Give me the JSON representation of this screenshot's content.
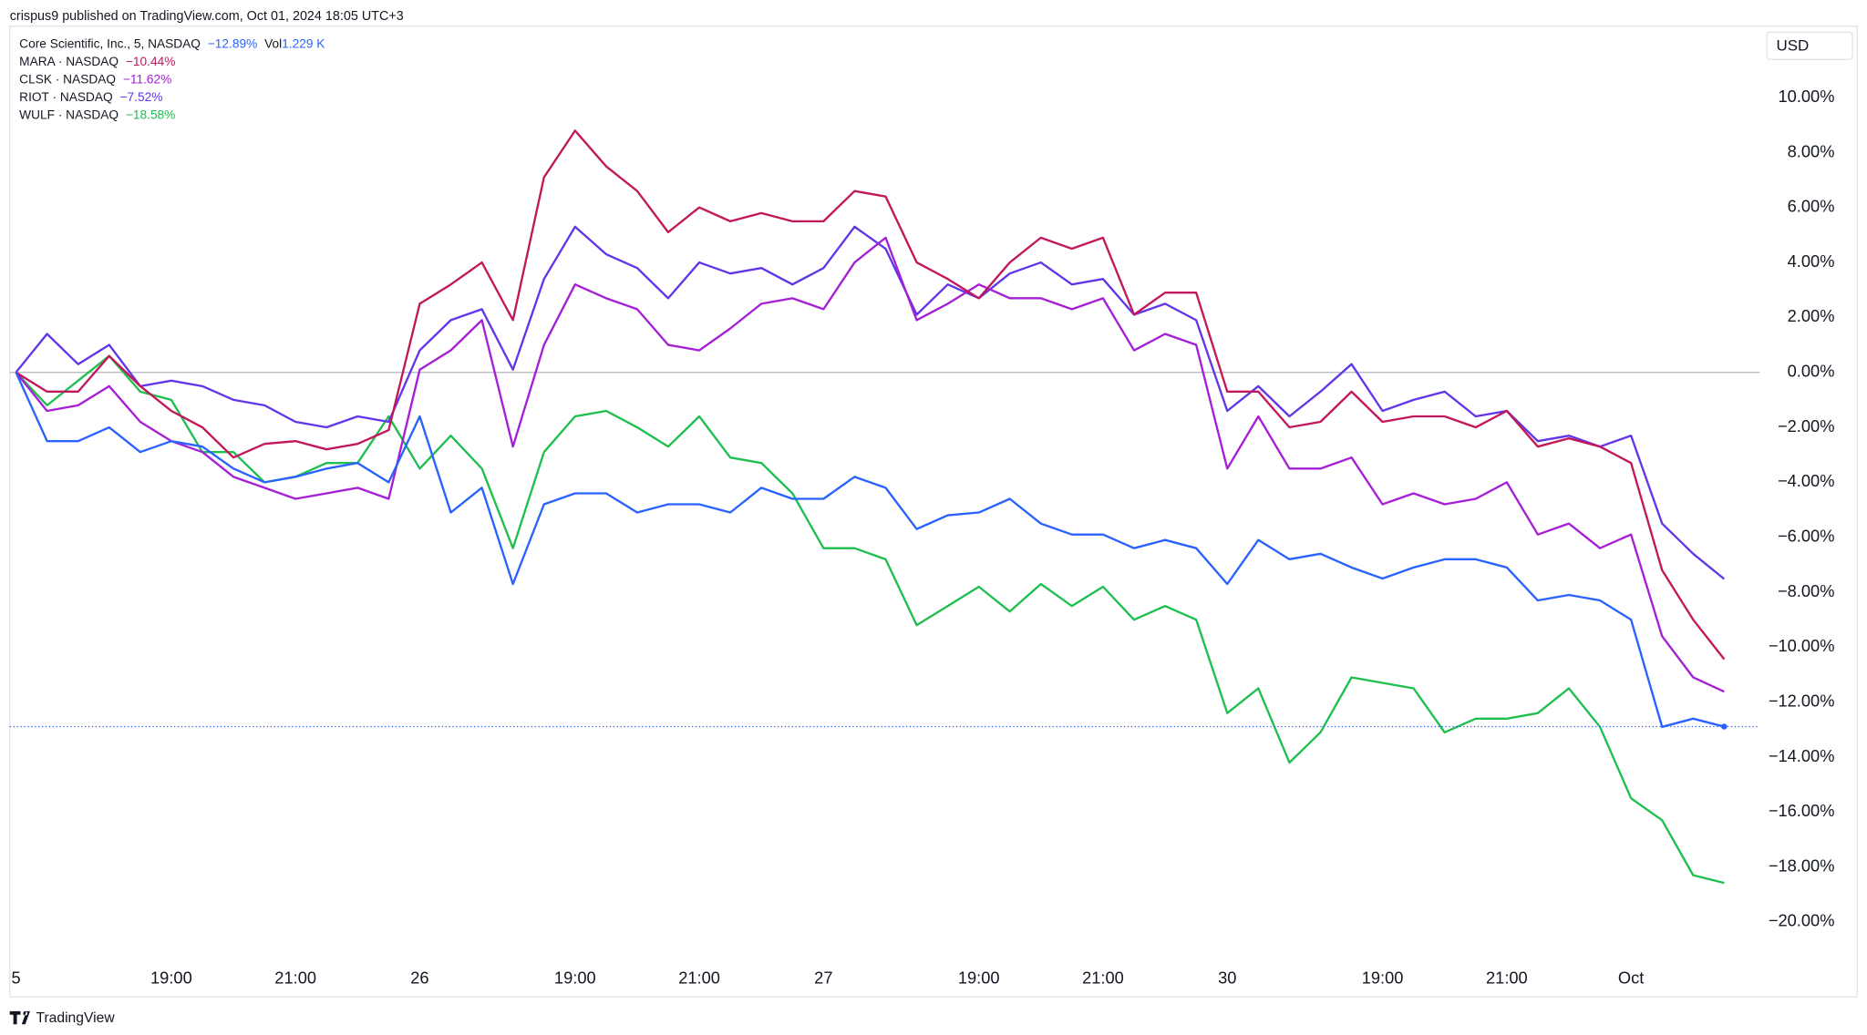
{
  "chart_data": {
    "type": "line",
    "header": "crispus9 published on TradingView.com, Oct 01, 2024 18:05 UTC+3",
    "currency": "USD",
    "brand": "TradingView",
    "volume_label": "Vol",
    "volume": "1.229 K",
    "x": [
      0,
      0.5,
      1,
      1.5,
      2,
      2.5,
      3,
      3.5,
      4,
      4.5,
      5,
      5.5,
      6,
      6.5,
      7,
      7.5,
      8,
      8.5,
      9,
      9.5,
      10,
      10.5,
      11,
      11.5,
      12,
      12.5,
      13,
      13.5,
      14,
      14.5,
      15,
      15.5,
      16,
      16.5,
      17,
      17.5,
      18,
      18.5,
      19,
      19.5,
      20,
      20.5,
      21,
      21.5,
      22,
      22.5,
      23,
      23.5,
      24,
      24.5,
      25,
      25.5,
      26,
      26.5,
      27,
      27.5
    ],
    "xlim": [
      -0.1,
      28.07
    ],
    "xticks": [
      {
        "value": 0,
        "label": "5"
      },
      {
        "value": 2.5,
        "label": "19:00"
      },
      {
        "value": 4.5,
        "label": "21:00"
      },
      {
        "value": 6.5,
        "label": "26"
      },
      {
        "value": 9,
        "label": "19:00"
      },
      {
        "value": 11,
        "label": "21:00"
      },
      {
        "value": 13,
        "label": "27"
      },
      {
        "value": 15.5,
        "label": "19:00"
      },
      {
        "value": 17.5,
        "label": "21:00"
      },
      {
        "value": 19.5,
        "label": "30"
      },
      {
        "value": 22,
        "label": "19:00"
      },
      {
        "value": 24,
        "label": "21:00"
      },
      {
        "value": 26,
        "label": "Oct"
      }
    ],
    "ylim": [
      -21.3,
      12.6
    ],
    "yticks": [
      {
        "value": 10,
        "label": "10.00%"
      },
      {
        "value": 8,
        "label": "8.00%"
      },
      {
        "value": 6,
        "label": "6.00%"
      },
      {
        "value": 4,
        "label": "4.00%"
      },
      {
        "value": 2,
        "label": "2.00%"
      },
      {
        "value": 0,
        "label": "0.00%"
      },
      {
        "value": -2,
        "label": "−2.00%"
      },
      {
        "value": -4,
        "label": "−4.00%"
      },
      {
        "value": -6,
        "label": "−6.00%"
      },
      {
        "value": -8,
        "label": "−8.00%"
      },
      {
        "value": -10,
        "label": "−10.00%"
      },
      {
        "value": -12,
        "label": "−12.00%"
      },
      {
        "value": -14,
        "label": "−14.00%"
      },
      {
        "value": -16,
        "label": "−16.00%"
      },
      {
        "value": -18,
        "label": "−18.00%"
      },
      {
        "value": -20,
        "label": "−20.00%"
      }
    ],
    "series": [
      {
        "name": "Core Scientific, Inc., 5, NASDAQ",
        "color": "#2962ff",
        "change": -12.89,
        "change_label": "−12.89%",
        "values": [
          0,
          -2.5,
          -2.5,
          -2.0,
          -2.9,
          -2.5,
          -2.7,
          -3.5,
          -4.0,
          -3.8,
          -3.5,
          -3.3,
          -4.0,
          -1.6,
          -5.1,
          -4.2,
          -7.7,
          -4.8,
          -4.4,
          -4.4,
          -5.1,
          -4.8,
          -4.8,
          -5.1,
          -4.2,
          -4.6,
          -4.6,
          -3.8,
          -4.2,
          -5.7,
          -5.2,
          -5.1,
          -4.6,
          -5.5,
          -5.9,
          -5.9,
          -6.4,
          -6.1,
          -6.4,
          -7.7,
          -6.1,
          -6.8,
          -6.6,
          -7.1,
          -7.5,
          -7.1,
          -6.8,
          -6.8,
          -7.1,
          -8.3,
          -8.1,
          -8.3,
          -9.0,
          -12.9,
          -12.6,
          -12.89
        ]
      },
      {
        "name": "MARA · NASDAQ",
        "color": "#c2185b",
        "change": -10.44,
        "change_label": "−10.44%",
        "values": [
          0,
          -0.7,
          -0.7,
          0.6,
          -0.5,
          -1.4,
          -2.0,
          -3.1,
          -2.6,
          -2.5,
          -2.8,
          -2.6,
          -2.1,
          2.5,
          3.2,
          4.0,
          1.9,
          7.1,
          8.8,
          7.5,
          6.6,
          5.1,
          6.0,
          5.5,
          5.8,
          5.5,
          5.5,
          6.6,
          6.4,
          4.0,
          3.4,
          2.7,
          4.0,
          4.9,
          4.5,
          4.9,
          2.1,
          2.9,
          2.9,
          -0.7,
          -0.7,
          -2.0,
          -1.8,
          -0.7,
          -1.8,
          -1.6,
          -1.6,
          -2.0,
          -1.4,
          -2.7,
          -2.4,
          -2.7,
          -3.3,
          -7.2,
          -9.0,
          -10.44
        ]
      },
      {
        "name": "CLSK · NASDAQ",
        "color": "#a61fd6",
        "change": -11.62,
        "change_label": "−11.62%",
        "values": [
          0,
          -1.4,
          -1.2,
          -0.5,
          -1.8,
          -2.5,
          -2.9,
          -3.8,
          -4.2,
          -4.6,
          -4.4,
          -4.2,
          -4.6,
          0.1,
          0.8,
          1.9,
          -2.7,
          1.0,
          3.2,
          2.7,
          2.3,
          1.0,
          0.8,
          1.6,
          2.5,
          2.7,
          2.3,
          4.0,
          4.9,
          1.9,
          2.5,
          3.2,
          2.7,
          2.7,
          2.3,
          2.7,
          0.8,
          1.4,
          1.0,
          -3.5,
          -1.6,
          -3.5,
          -3.5,
          -3.1,
          -4.8,
          -4.4,
          -4.8,
          -4.6,
          -4.0,
          -5.9,
          -5.5,
          -6.4,
          -5.9,
          -9.6,
          -11.1,
          -11.62
        ]
      },
      {
        "name": "RIOT · NASDAQ",
        "color": "#6236e8",
        "change": -7.52,
        "change_label": "−7.52%",
        "values": [
          0,
          1.4,
          0.3,
          1.0,
          -0.5,
          -0.3,
          -0.5,
          -1.0,
          -1.2,
          -1.8,
          -2.0,
          -1.6,
          -1.8,
          0.8,
          1.9,
          2.3,
          0.1,
          3.4,
          5.3,
          4.3,
          3.8,
          2.7,
          4.0,
          3.6,
          3.8,
          3.2,
          3.8,
          5.3,
          4.5,
          2.1,
          3.2,
          2.7,
          3.6,
          4.0,
          3.2,
          3.4,
          2.1,
          2.5,
          1.9,
          -1.4,
          -0.5,
          -1.6,
          -0.7,
          0.3,
          -1.4,
          -1.0,
          -0.7,
          -1.6,
          -1.4,
          -2.5,
          -2.3,
          -2.7,
          -2.3,
          -5.5,
          -6.6,
          -7.52
        ]
      },
      {
        "name": "WULF · NASDAQ",
        "color": "#1fbf4f",
        "change": -18.58,
        "change_label": "−18.58%",
        "values": [
          0,
          -1.2,
          -0.3,
          0.6,
          -0.7,
          -1.0,
          -2.9,
          -2.9,
          -4.0,
          -3.8,
          -3.3,
          -3.3,
          -1.6,
          -3.5,
          -2.3,
          -3.5,
          -6.4,
          -2.9,
          -1.6,
          -1.4,
          -2.0,
          -2.7,
          -1.6,
          -3.1,
          -3.3,
          -4.4,
          -6.4,
          -6.4,
          -6.8,
          -9.2,
          -8.5,
          -7.8,
          -8.7,
          -7.7,
          -8.5,
          -7.8,
          -9.0,
          -8.5,
          -9.0,
          -12.4,
          -11.5,
          -14.2,
          -13.1,
          -11.1,
          -11.3,
          -11.5,
          -13.1,
          -12.6,
          -12.6,
          -12.4,
          -11.5,
          -12.9,
          -15.5,
          -16.3,
          -18.3,
          -18.58
        ]
      }
    ]
  }
}
